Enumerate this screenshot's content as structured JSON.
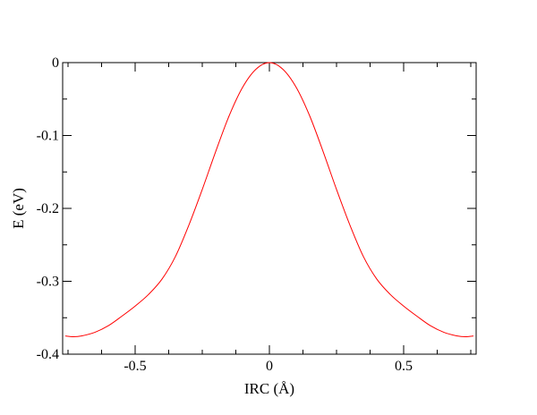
{
  "chart_data": {
    "type": "line",
    "title": "",
    "xlabel": "IRC (Å)",
    "ylabel": "E (eV)",
    "xlim": [
      -0.77,
      0.77
    ],
    "ylim": [
      -0.4,
      0
    ],
    "xticks": [
      {
        "value": -0.5,
        "label": "-0.5"
      },
      {
        "value": 0,
        "label": "0"
      },
      {
        "value": 0.5,
        "label": "0.5"
      }
    ],
    "yticks": [
      {
        "value": 0,
        "label": "0"
      },
      {
        "value": -0.1,
        "label": "-0.1"
      },
      {
        "value": -0.2,
        "label": "-0.2"
      },
      {
        "value": -0.3,
        "label": "-0.3"
      },
      {
        "value": -0.4,
        "label": "-0.4"
      }
    ],
    "grid": false,
    "legend": "none",
    "series": [
      {
        "color": "#ff0000",
        "x": [
          -0.76,
          -0.73,
          -0.7,
          -0.65,
          -0.6,
          -0.55,
          -0.5,
          -0.45,
          -0.4,
          -0.35,
          -0.3,
          -0.25,
          -0.2,
          -0.15,
          -0.1,
          -0.05,
          0,
          0.05,
          0.1,
          0.15,
          0.2,
          0.25,
          0.3,
          0.35,
          0.4,
          0.45,
          0.5,
          0.55,
          0.6,
          0.65,
          0.7,
          0.73,
          0.76
        ],
        "y": [
          -0.375,
          -0.376,
          -0.375,
          -0.37,
          -0.361,
          -0.348,
          -0.334,
          -0.318,
          -0.297,
          -0.266,
          -0.223,
          -0.174,
          -0.122,
          -0.073,
          -0.034,
          -0.009,
          0,
          -0.009,
          -0.034,
          -0.073,
          -0.122,
          -0.174,
          -0.223,
          -0.266,
          -0.297,
          -0.318,
          -0.334,
          -0.348,
          -0.361,
          -0.37,
          -0.375,
          -0.376,
          -0.375
        ]
      }
    ]
  }
}
